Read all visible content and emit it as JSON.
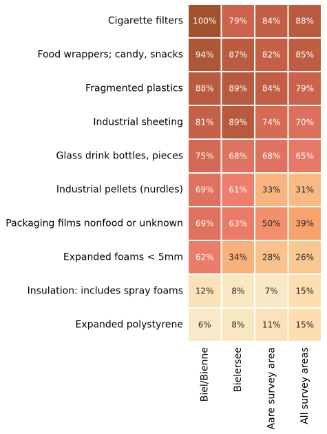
{
  "chart_data": {
    "type": "heatmap",
    "rows": [
      "Cigarette filters",
      "Food wrappers; candy, snacks",
      "Fragmented plastics",
      "Industrial sheeting",
      "Glass drink bottles, pieces",
      "Industrial pellets (nurdles)",
      "Packaging films nonfood or unknown",
      "Expanded foams < 5mm",
      "Insulation: includes spray foams",
      "Expanded polystyrene"
    ],
    "columns": [
      "Biel/Bienne",
      "Bielersee",
      "Aare survey area",
      "All survey areas"
    ],
    "values": [
      [
        100,
        79,
        84,
        88
      ],
      [
        94,
        87,
        82,
        85
      ],
      [
        88,
        89,
        84,
        79
      ],
      [
        81,
        89,
        74,
        70
      ],
      [
        75,
        68,
        68,
        65
      ],
      [
        69,
        61,
        33,
        31
      ],
      [
        69,
        63,
        50,
        39
      ],
      [
        62,
        34,
        28,
        26
      ],
      [
        12,
        8,
        7,
        15
      ],
      [
        6,
        8,
        11,
        15
      ]
    ],
    "labels": [
      [
        "100%",
        "79%",
        "84%",
        "88%"
      ],
      [
        "94%",
        "87%",
        "82%",
        "85%"
      ],
      [
        "88%",
        "89%",
        "84%",
        "79%"
      ],
      [
        "81%",
        "89%",
        "74%",
        "70%"
      ],
      [
        "75%",
        "68%",
        "68%",
        "65%"
      ],
      [
        "69%",
        "61%",
        "33%",
        "31%"
      ],
      [
        "69%",
        "63%",
        "50%",
        "39%"
      ],
      [
        "62%",
        "34%",
        "28%",
        "26%"
      ],
      [
        "12%",
        "8%",
        "7%",
        "15%"
      ],
      [
        "6%",
        "8%",
        "11%",
        "15%"
      ]
    ],
    "value_range": [
      0,
      100
    ],
    "colormap": [
      "#f7f1d8",
      "#fdd7a2",
      "#f6a06a",
      "#f07f6e",
      "#c9614a",
      "#a0522d"
    ],
    "legend": "none"
  }
}
